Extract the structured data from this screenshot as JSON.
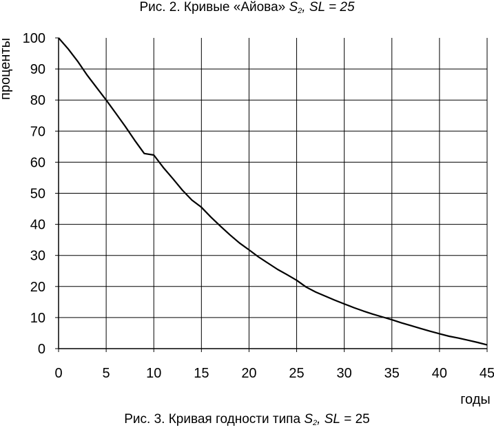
{
  "figure_caption_top": {
    "prefix": "Рис. 2. Кривые «Айова» ",
    "s_letter": "S",
    "s_sub": "2",
    "suffix": ", SL = 25"
  },
  "figure_caption_bottom": {
    "prefix": "Рис. 3. Кривая годности типа ",
    "s_letter": "S",
    "s_sub": "2",
    "sl_part": ", SL",
    "suffix": " = 25"
  },
  "chart_data": {
    "type": "line",
    "xlabel": "годы",
    "ylabel": "проценты",
    "xlim": [
      0,
      45
    ],
    "ylim": [
      0,
      100
    ],
    "x_ticks": [
      "0",
      "5",
      "10",
      "15",
      "20",
      "25",
      "30",
      "35",
      "40",
      "45"
    ],
    "y_ticks": [
      "0",
      "10",
      "20",
      "30",
      "40",
      "50",
      "60",
      "70",
      "80",
      "90",
      "100"
    ],
    "grid": true,
    "legend": "none",
    "line_color": "#000000",
    "series": [
      {
        "x": [
          0,
          1,
          2,
          3,
          4,
          5,
          6,
          7,
          8,
          9,
          10,
          11,
          12,
          13,
          14,
          15,
          16,
          17,
          18,
          19,
          20,
          21,
          22,
          23,
          24,
          25,
          26,
          27,
          28,
          29,
          30,
          31,
          32,
          33,
          34,
          35,
          36,
          37,
          38,
          39,
          40,
          41,
          42,
          43,
          44,
          45
        ],
        "y": [
          100,
          96.5,
          92.5,
          88,
          84,
          80,
          75.8,
          71.5,
          67,
          62.8,
          62.3,
          58.3,
          54.7,
          51,
          47.8,
          45.5,
          42.3,
          39.4,
          36.6,
          34,
          31.8,
          29.5,
          27.5,
          25.5,
          23.8,
          22,
          19.8,
          18.2,
          16.9,
          15.6,
          14.4,
          13.2,
          12.1,
          11.1,
          10.2,
          9.3,
          8.3,
          7.4,
          6.5,
          5.6,
          4.8,
          4.0,
          3.4,
          2.7,
          2.0,
          1.2
        ]
      }
    ]
  }
}
